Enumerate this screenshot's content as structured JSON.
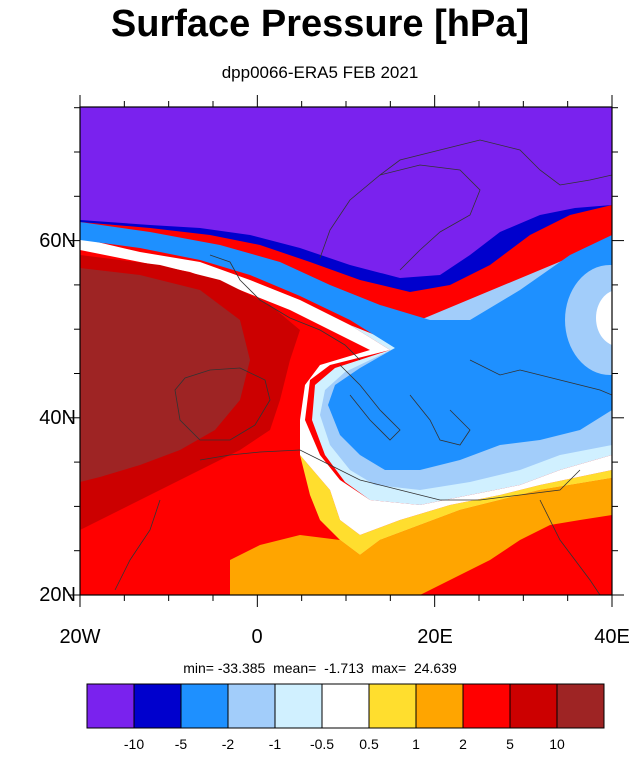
{
  "title": "Surface Pressure [hPa]",
  "subtitle": "dpp0066-ERA5 FEB 2021",
  "axes": {
    "y_ticks": [
      "20N",
      "40N",
      "60N"
    ],
    "x_ticks": [
      "20W",
      "0",
      "20E",
      "40E"
    ]
  },
  "stats": {
    "text": "min= -33.385  mean=  -1.713  max=  24.639"
  },
  "colorbar": {
    "colors": [
      "#7a22ee",
      "#0000cd",
      "#1e90ff",
      "#a2cdfa",
      "#d0f0ff",
      "#ffffff",
      "#ffde2e",
      "#ffa500",
      "#ff0000",
      "#cc0000",
      "#9e2424"
    ],
    "labels": [
      "-10",
      "-5",
      "-2",
      "-1",
      "-0.5",
      "0.5",
      "1",
      "2",
      "5",
      "10"
    ]
  }
}
